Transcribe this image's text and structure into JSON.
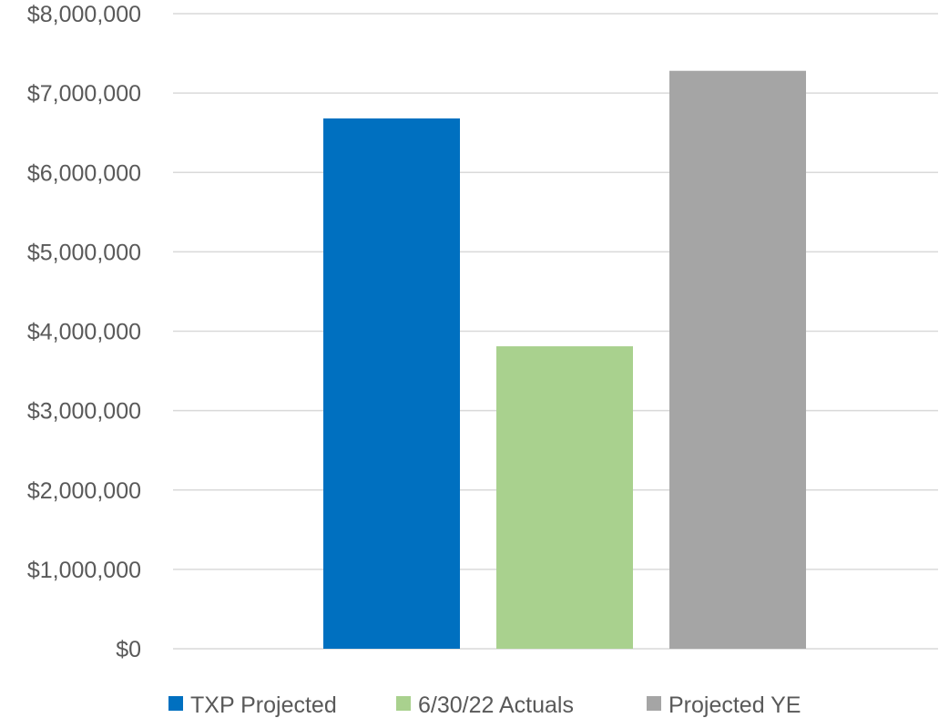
{
  "chart_data": {
    "type": "bar",
    "title": "",
    "xlabel": "",
    "ylabel": "",
    "ylim": [
      0,
      8000000
    ],
    "y_ticks": [
      0,
      1000000,
      2000000,
      3000000,
      4000000,
      5000000,
      6000000,
      7000000,
      8000000
    ],
    "y_tick_labels": [
      "$0",
      "$1,000,000",
      "$2,000,000",
      "$3,000,000",
      "$4,000,000",
      "$5,000,000",
      "$6,000,000",
      "$7,000,000",
      "$8,000,000"
    ],
    "grid": true,
    "legend_position": "bottom",
    "series": [
      {
        "name": "TXP Projected",
        "value": 6680000,
        "color": "#0070c0"
      },
      {
        "name": "6/30/22 Actuals",
        "value": 3810000,
        "color": "#a9d18e"
      },
      {
        "name": "Projected YE",
        "value": 7280000,
        "color": "#a5a5a5"
      }
    ]
  }
}
